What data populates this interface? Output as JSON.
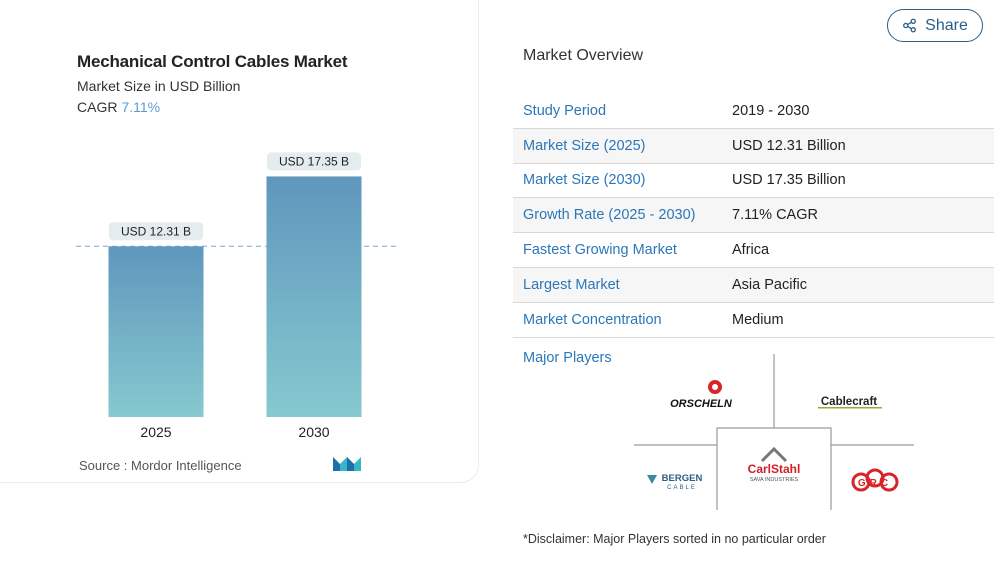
{
  "chart_data": {
    "type": "bar",
    "title": "Mechanical Control Cables Market",
    "subtitle": "Market Size in USD Billion",
    "cagr_label": "CAGR",
    "cagr_value": "7.11%",
    "categories": [
      "2025",
      "2030"
    ],
    "values": [
      12.31,
      17.35
    ],
    "data_labels": [
      "USD 12.31 B",
      "USD 17.35 B"
    ],
    "ylim": [
      0,
      19.4
    ],
    "grid": false,
    "reference_line_value": 12.31,
    "bar_color_top": "#5f97bd",
    "bar_color_bottom": "#86c9cf"
  },
  "source_text": "Source :  Mordor Intelligence",
  "share": {
    "label": "Share",
    "icon": "share-icon"
  },
  "overview": {
    "title": "Market Overview",
    "rows": [
      {
        "label": "Study Period",
        "value": "2019 - 2030"
      },
      {
        "label": "Market Size (2025)",
        "value": "USD 12.31 Billion"
      },
      {
        "label": "Market Size (2030)",
        "value": "USD 17.35 Billion"
      },
      {
        "label": "Growth Rate (2025 - 2030)",
        "value": "7.11% CAGR"
      },
      {
        "label": "Fastest Growing Market",
        "value": "Africa"
      },
      {
        "label": "Largest Market",
        "value": "Asia Pacific"
      },
      {
        "label": "Market Concentration",
        "value": "Medium"
      }
    ]
  },
  "players": {
    "label": "Major Players",
    "logos": [
      "ORSCHELN",
      "Cablecraft",
      "BERGEN",
      "CABLE",
      "CarlStahl",
      "SAVA INDUSTRIES",
      "GRC"
    ]
  },
  "disclaimer": "*Disclaimer: Major Players sorted in no particular order",
  "colors": {
    "accent": "#2c77b8",
    "share": "#2b5f8a",
    "cagr": "#5b9bd5"
  }
}
